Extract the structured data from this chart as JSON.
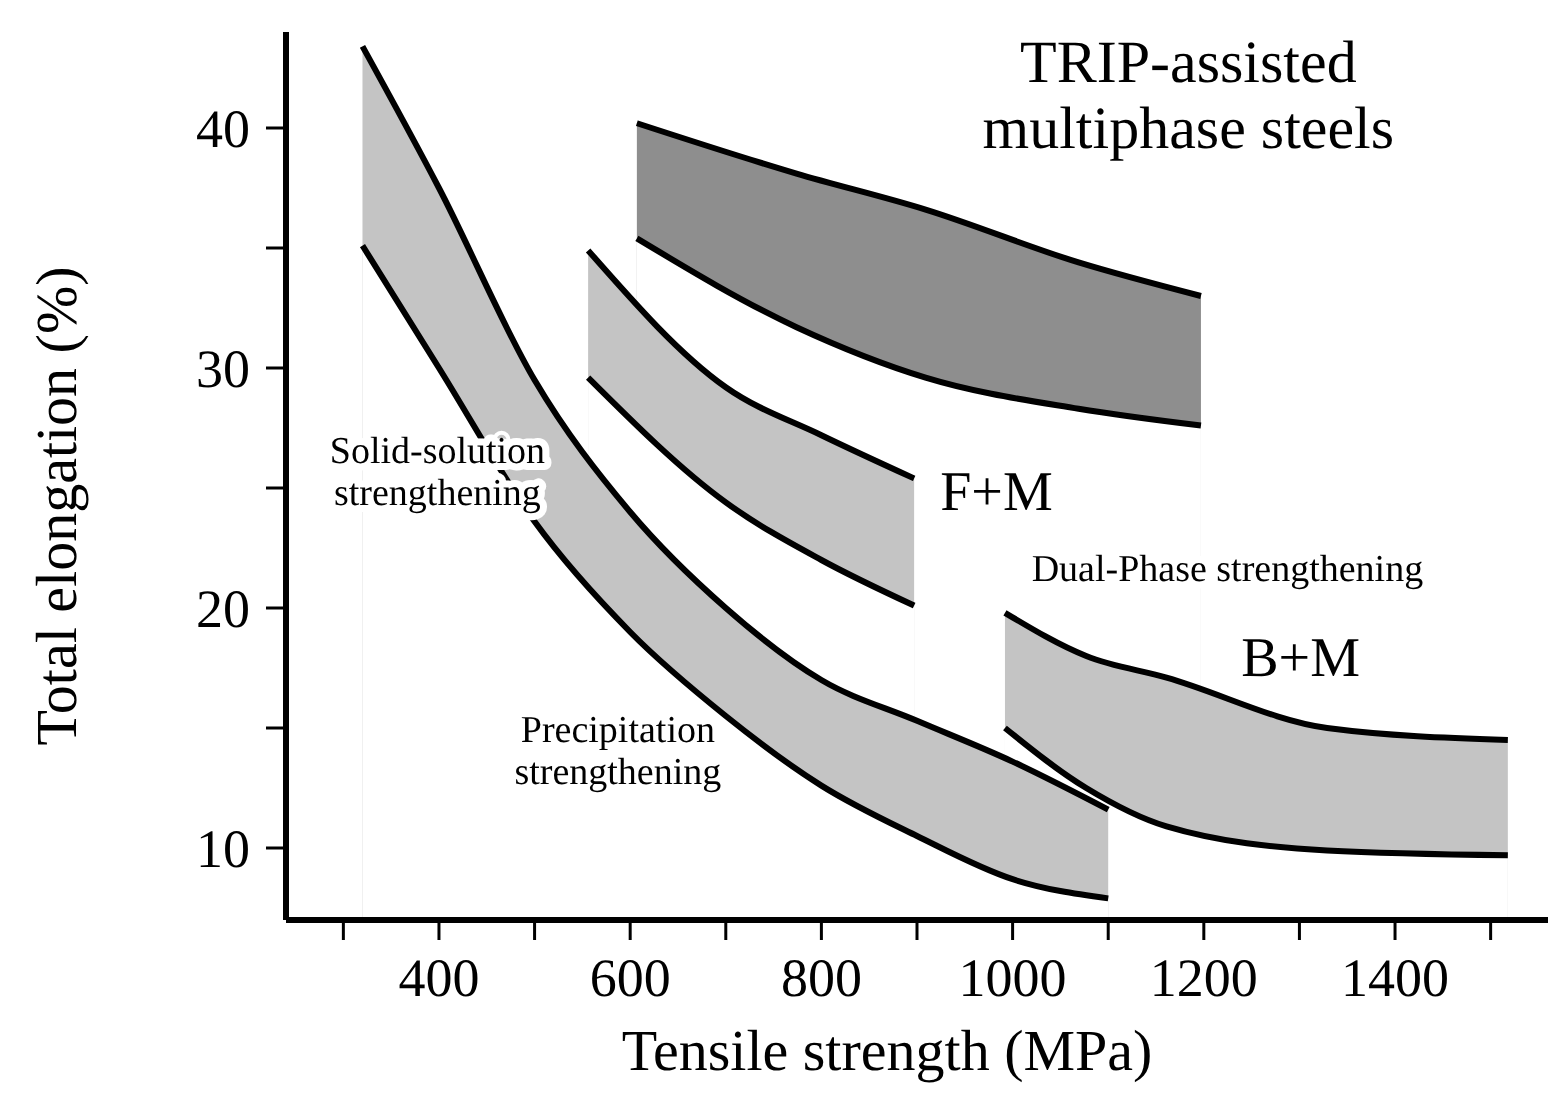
{
  "chart_data": {
    "type": "area",
    "xlabel": "Tensile strength (MPa)",
    "ylabel": "Total elongation (%)",
    "xlim": [
      240,
      1560
    ],
    "ylim": [
      7,
      44
    ],
    "xticks": [
      {
        "value": 300,
        "label": null
      },
      400,
      {
        "value": 500,
        "label": null
      },
      600,
      {
        "value": 700,
        "label": null
      },
      800,
      {
        "value": 900,
        "label": null
      },
      1000,
      {
        "value": 1100,
        "label": null
      },
      1200,
      {
        "value": 1300,
        "label": null
      },
      1400,
      {
        "value": 1500,
        "label": null
      }
    ],
    "yticks": [
      10,
      {
        "value": 15,
        "label": null
      },
      20,
      {
        "value": 25,
        "label": null
      },
      30,
      {
        "value": 35,
        "label": null
      },
      40
    ],
    "grid": false,
    "legend": false,
    "series": [
      {
        "color": "#8e8e8e",
        "x": [
          607,
          774,
          909,
          1069,
          1197
        ],
        "values": [
          40.2,
          38.1,
          36.6,
          34.4,
          33.0
        ]
      },
      {
        "color": "#ffffff",
        "x": [
          607,
          774,
          909,
          1069,
          1197
        ],
        "values": [
          35.4,
          31.7,
          29.6,
          28.3,
          27.6
        ]
      },
      {
        "color": "#c4c4c4",
        "x": [
          556,
          700,
          800,
          897
        ],
        "values": [
          34.9,
          29.2,
          27.2,
          25.4
        ]
      },
      {
        "color": "#ffffff",
        "x": [
          556,
          700,
          800,
          897
        ],
        "values": [
          29.6,
          24.4,
          22.0,
          20.1
        ]
      },
      {
        "color": "#c4c4c4",
        "x": [
          992,
          1077,
          1161,
          1329,
          1518
        ],
        "values": [
          19.8,
          18.0,
          17.1,
          15.0,
          14.5
        ]
      },
      {
        "color": "#ffffff",
        "x": [
          992,
          1077,
          1161,
          1329,
          1518
        ],
        "values": [
          15.0,
          12.5,
          10.9,
          9.9,
          9.7
        ]
      },
      {
        "color": "#c4c4c4",
        "x": [
          320,
          400,
          500,
          600,
          700,
          800,
          900,
          1000,
          1100
        ],
        "values": [
          43.4,
          37.5,
          29.5,
          24.0,
          20.0,
          17.0,
          15.3,
          13.6,
          11.6
        ]
      },
      {
        "color": "#ffffff",
        "x": [
          320,
          400,
          500,
          600,
          700,
          800,
          900,
          1000,
          1100
        ],
        "values": [
          35.1,
          30.0,
          23.6,
          19.0,
          15.5,
          12.6,
          10.5,
          8.7,
          7.9
        ]
      }
    ],
    "annotations": [
      "TRIP-assisted\nmultiphase steels",
      "Solid-solution\nstrengthening",
      "F+M",
      "Dual-Phase strengthening",
      "B+M",
      "Precipitation\nstrengthening"
    ]
  }
}
